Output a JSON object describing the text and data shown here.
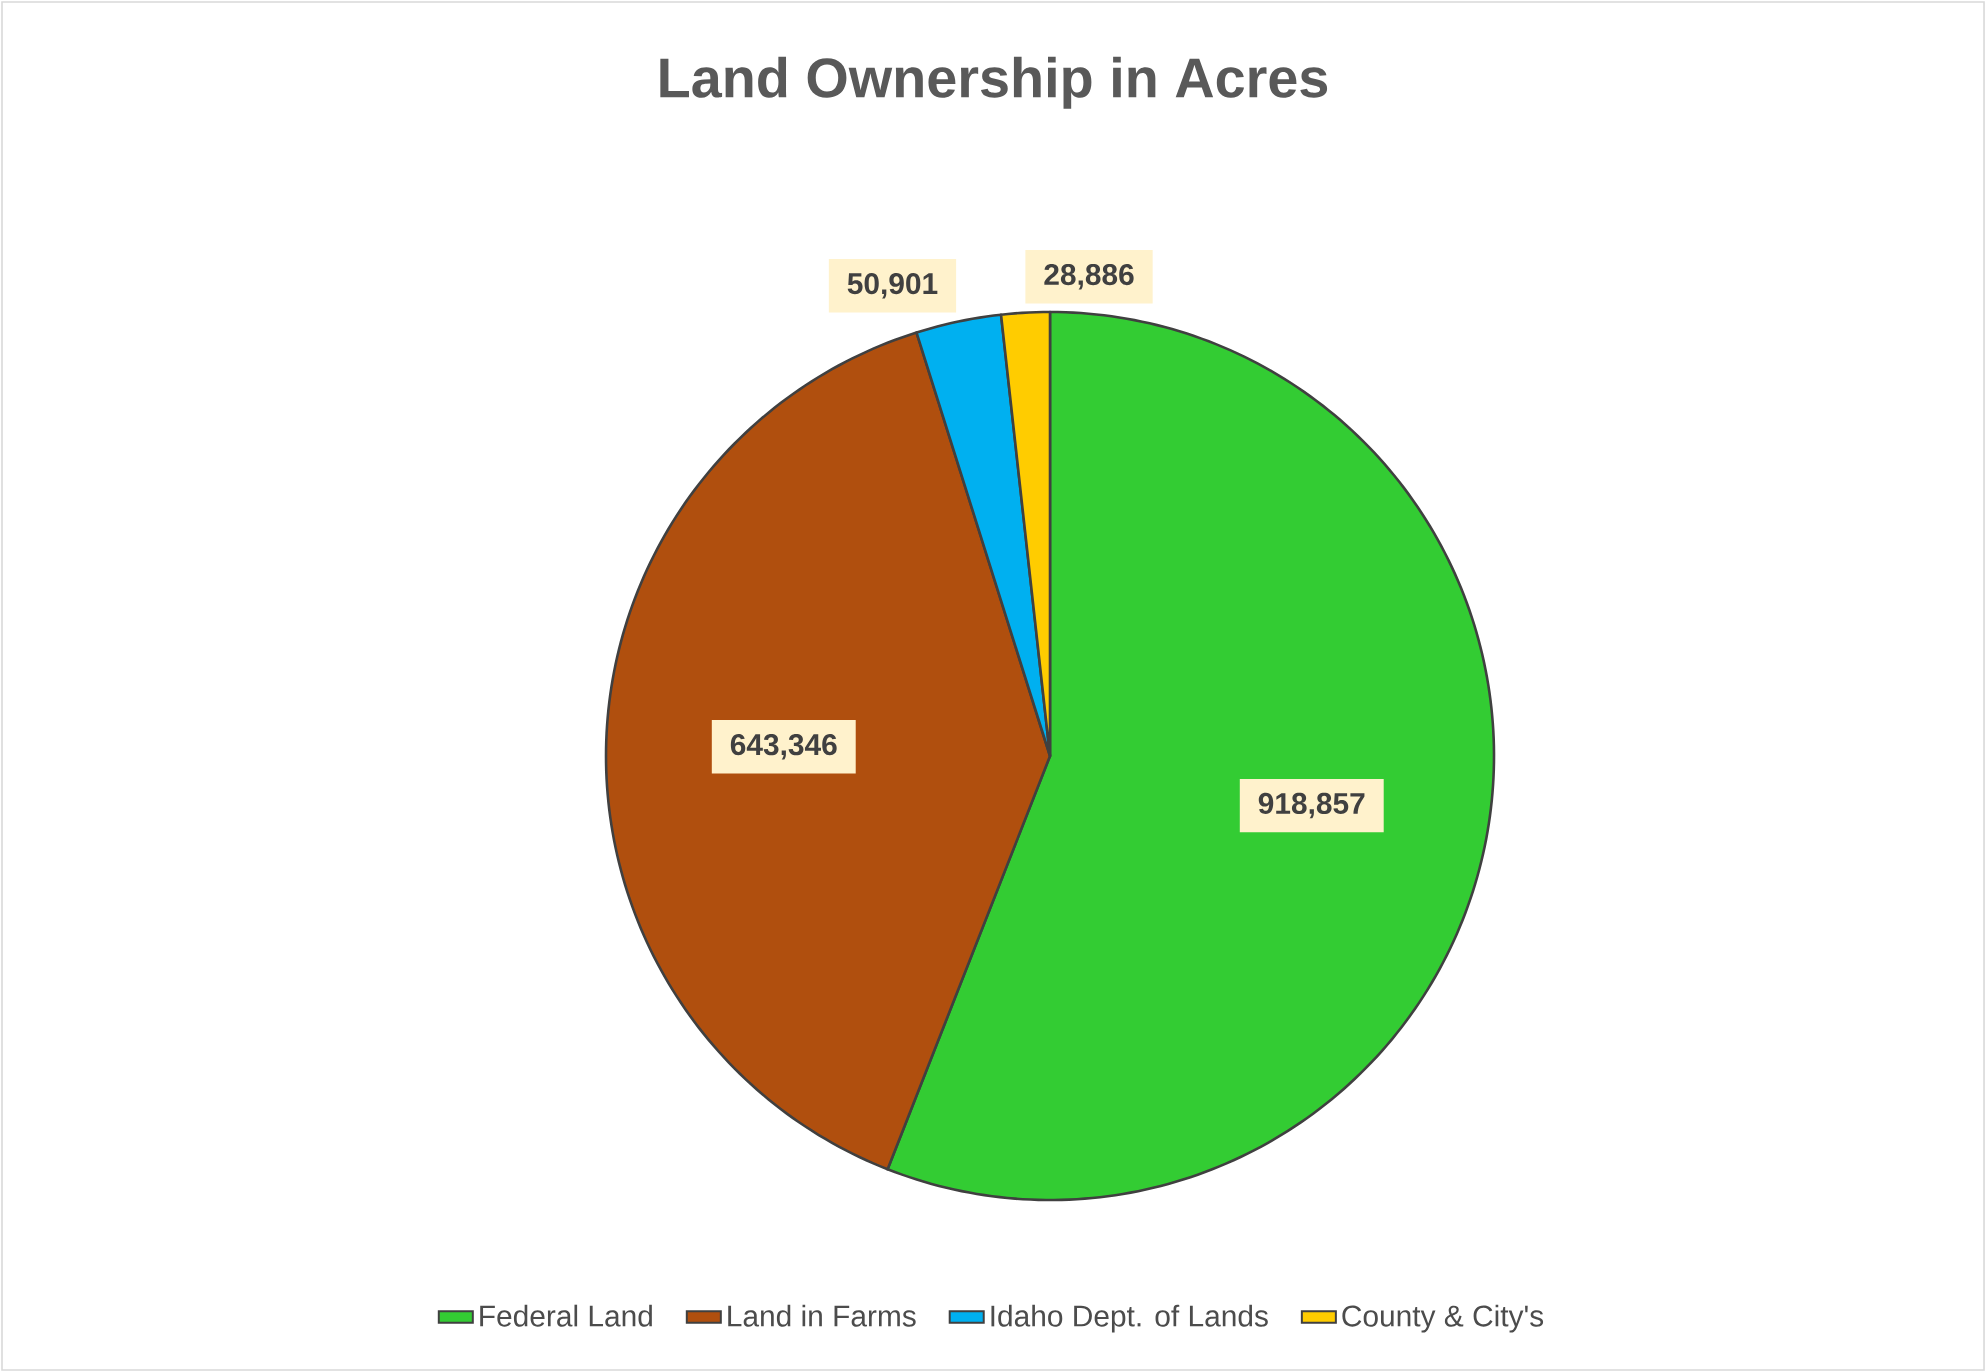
{
  "chart_data": {
    "type": "pie",
    "title": "Land Ownership in Acres",
    "categories": [
      "Federal Land",
      "Land in Farms",
      "Idaho Dept. of Lands",
      "County & City's"
    ],
    "values": [
      918857,
      643346,
      50901,
      28886
    ],
    "colors": [
      "#33cc33",
      "#b04f0e",
      "#00b0f0",
      "#ffcc00"
    ],
    "data_labels": true,
    "value_labels": [
      "918,857",
      "643,346",
      "50,901",
      "28,886"
    ],
    "legend": "bottom"
  }
}
